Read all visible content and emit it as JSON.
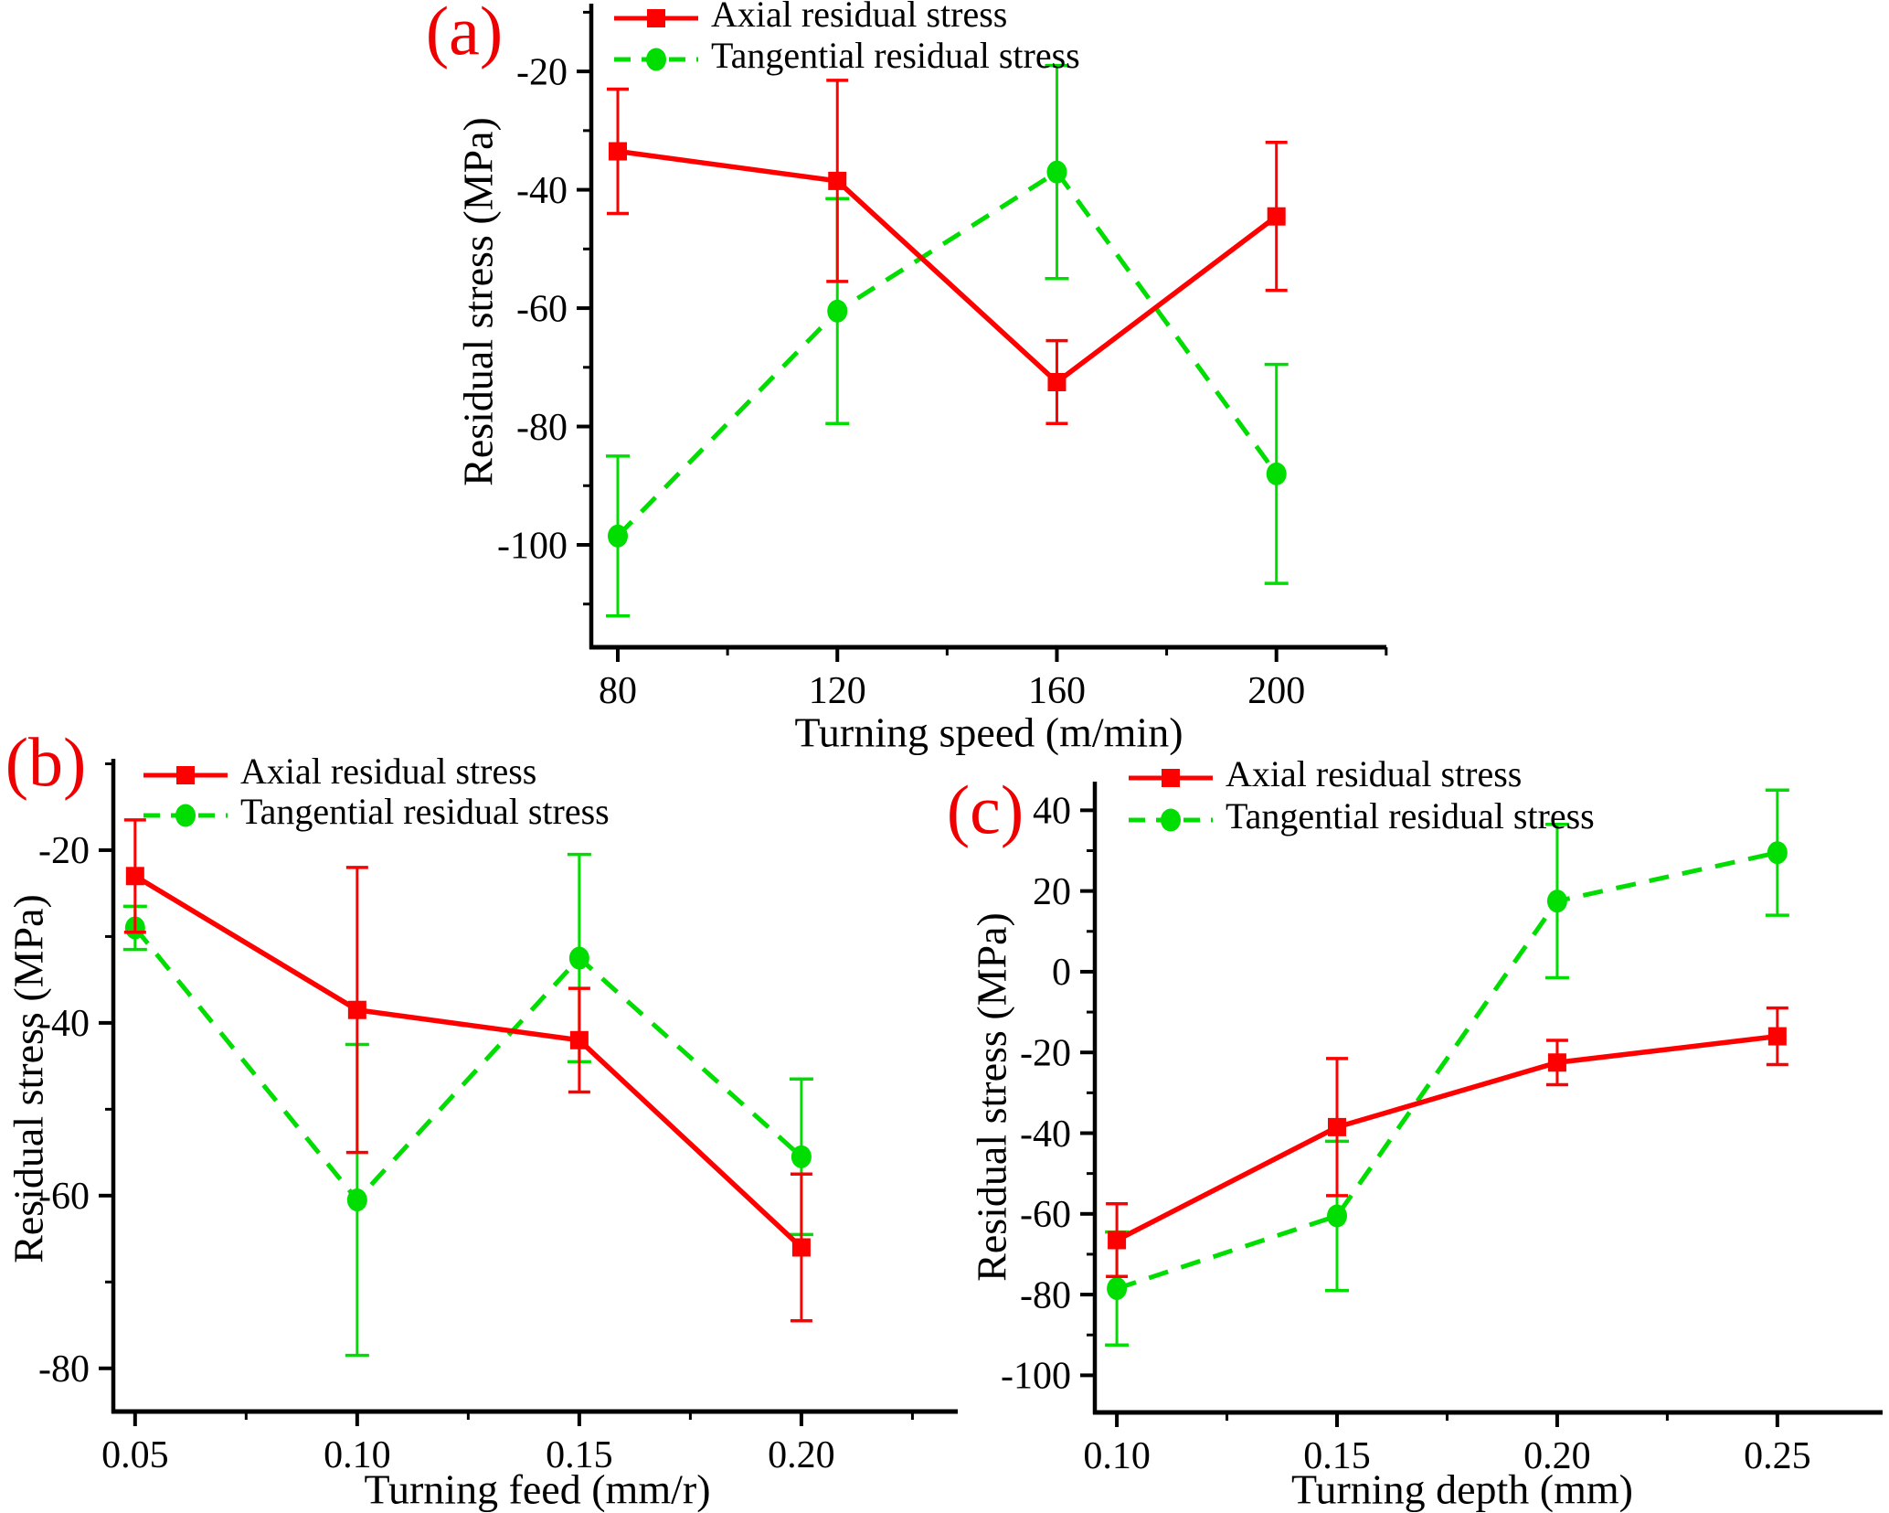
{
  "figure": {
    "background": "#ffffff",
    "text_color": "#000000",
    "axis_color": "#000000",
    "accent_red": "#ff0000",
    "accent_green": "#00dd00",
    "panel_label_color": "#ee0000"
  },
  "legend": {
    "items": [
      {
        "label": "Axial residual stress",
        "series": "axial"
      },
      {
        "label": "Tangential residual stress",
        "series": "tangential"
      }
    ]
  },
  "chart_data": [
    {
      "id": "a",
      "type": "line",
      "panel_label": "(a)",
      "xlabel": "Turning speed (m/min)",
      "ylabel": "Residual stress (MPa)",
      "x": [
        80,
        120,
        160,
        200
      ],
      "x_tick_labels": [
        "80",
        "120",
        "160",
        "200"
      ],
      "x_minor_ticks": [
        100,
        140,
        180,
        220
      ],
      "xlim": [
        75.17,
        220.03
      ],
      "y_ticks": [
        -20,
        -40,
        -60,
        -80,
        -100
      ],
      "y_tick_labels": [
        "-20",
        "-40",
        "-60",
        "-80",
        "-100"
      ],
      "y_minor_ticks": [
        -10,
        -30,
        -50,
        -70,
        -90,
        -110
      ],
      "ylim": [
        -117.3,
        -8.55
      ],
      "grid": false,
      "legend_position": "top-left-inside",
      "series": [
        {
          "name": "Axial residual stress",
          "color": "#ff0000",
          "marker": "square",
          "line": "solid",
          "values": [
            -33.5,
            -38.5,
            -72.5,
            -44.5
          ],
          "error": [
            10.5,
            17,
            7,
            12.5
          ]
        },
        {
          "name": "Tangential residual stress",
          "color": "#00dd00",
          "marker": "circle",
          "line": "dashed",
          "values": [
            -98.5,
            -60.5,
            -37,
            -88
          ],
          "error": [
            13.5,
            19,
            18,
            18.5
          ]
        }
      ]
    },
    {
      "id": "b",
      "type": "line",
      "panel_label": "(b)",
      "xlabel": "Turning feed (mm/r)",
      "ylabel": "Residual stress (MPa)",
      "x": [
        0.05,
        0.1,
        0.15,
        0.2
      ],
      "x_tick_labels": [
        "0.05",
        "0.10",
        "0.15",
        "0.20"
      ],
      "x_minor_ticks": [
        0.075,
        0.125,
        0.175,
        0.225
      ],
      "xlim": [
        0.0451,
        0.2352
      ],
      "y_ticks": [
        -20,
        -40,
        -60,
        -80
      ],
      "y_tick_labels": [
        "-20",
        "-40",
        "-60",
        "-80"
      ],
      "y_minor_ticks": [
        -10,
        -30,
        -50,
        -70
      ],
      "ylim": [
        -85.0,
        -9.42
      ],
      "grid": false,
      "legend_position": "top-left-inside",
      "series": [
        {
          "name": "Axial residual stress",
          "color": "#ff0000",
          "marker": "square",
          "line": "solid",
          "values": [
            -23,
            -38.5,
            -42,
            -66
          ],
          "error": [
            6.5,
            16.5,
            6,
            8.5
          ]
        },
        {
          "name": "Tangential residual stress",
          "color": "#00dd00",
          "marker": "circle",
          "line": "dashed",
          "values": [
            -29,
            -60.5,
            -32.5,
            -55.5
          ],
          "error": [
            2.5,
            18,
            12,
            9
          ]
        }
      ]
    },
    {
      "id": "c",
      "type": "line",
      "panel_label": "(c)",
      "xlabel": "Turning depth (mm)",
      "ylabel": "Residual stress (MPa)",
      "x": [
        0.1,
        0.15,
        0.2,
        0.25
      ],
      "x_tick_labels": [
        "0.10",
        "0.15",
        "0.20",
        "0.25"
      ],
      "x_minor_ticks": [
        0.125,
        0.175,
        0.225
      ],
      "xlim": [
        0.095,
        0.2739
      ],
      "y_ticks": [
        40,
        20,
        0,
        -20,
        -40,
        -60,
        -80,
        -100
      ],
      "y_tick_labels": [
        "40",
        "20",
        "0",
        "-20",
        "-40",
        "-60",
        "-80",
        "-100"
      ],
      "y_minor_ticks": [
        30,
        10,
        -10,
        -30,
        -50,
        -70,
        -90
      ],
      "ylim": [
        -109.2,
        47.1
      ],
      "grid": false,
      "legend_position": "top-left-inside",
      "series": [
        {
          "name": "Axial residual stress",
          "color": "#ff0000",
          "marker": "square",
          "line": "solid",
          "values": [
            -66.5,
            -38.5,
            -22.5,
            -16
          ],
          "error": [
            9,
            17,
            5.5,
            7
          ]
        },
        {
          "name": "Tangential residual stress",
          "color": "#00dd00",
          "marker": "circle",
          "line": "dashed",
          "values": [
            -78.5,
            -60.5,
            17.5,
            29.5
          ],
          "error": [
            14,
            18.5,
            19,
            15.5
          ]
        }
      ]
    }
  ]
}
